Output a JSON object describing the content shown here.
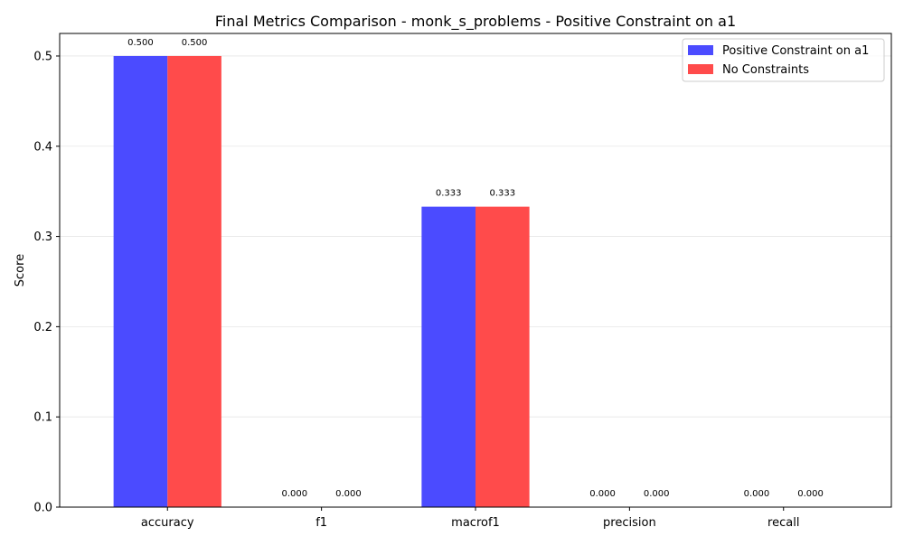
{
  "chart_data": {
    "type": "bar",
    "title": "Final Metrics Comparison - monk_s_problems - Positive Constraint on a1",
    "xlabel": "",
    "ylabel": "Score",
    "categories": [
      "accuracy",
      "f1",
      "macrof1",
      "precision",
      "recall"
    ],
    "series": [
      {
        "name": "Positive Constraint on a1",
        "color": "#4b4bff",
        "values": [
          0.5,
          0.0,
          0.333,
          0.0,
          0.0
        ]
      },
      {
        "name": "No Constraints",
        "color": "#ff4b4b",
        "values": [
          0.5,
          0.0,
          0.333,
          0.0,
          0.0
        ]
      }
    ],
    "data_labels": [
      [
        "0.500",
        "0.000",
        "0.333",
        "0.000",
        "0.000"
      ],
      [
        "0.500",
        "0.000",
        "0.333",
        "0.000",
        "0.000"
      ]
    ],
    "ylim": [
      0,
      0.525
    ],
    "yticks": [
      "0.0",
      "0.1",
      "0.2",
      "0.3",
      "0.4",
      "0.5"
    ],
    "ytick_values": [
      0,
      0.1,
      0.2,
      0.3,
      0.4,
      0.5
    ],
    "grid": "horizontal",
    "legend_position": "top-right"
  }
}
